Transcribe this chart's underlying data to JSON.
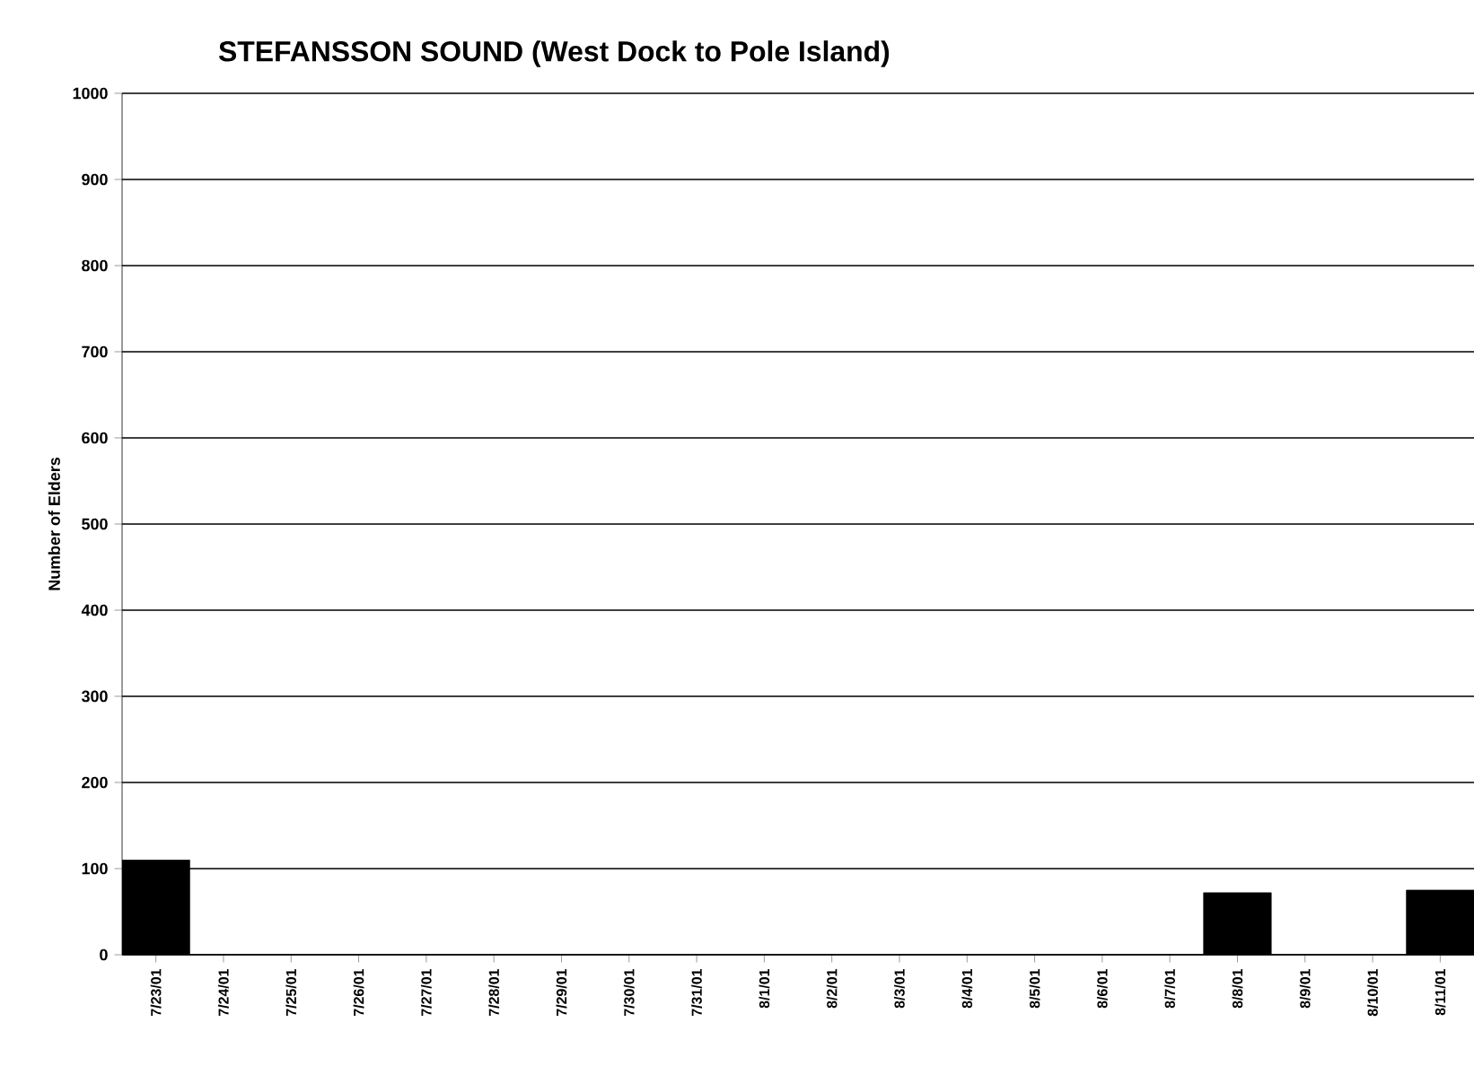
{
  "chart_data": {
    "type": "bar",
    "title": "STEFANSSON SOUND (West Dock to Pole Island)",
    "ylabel": "Number of Elders",
    "categories": [
      "7/23/01",
      "7/24/01",
      "7/25/01",
      "7/26/01",
      "7/27/01",
      "7/28/01",
      "7/29/01",
      "7/30/01",
      "7/31/01",
      "8/1/01",
      "8/2/01",
      "8/3/01",
      "8/4/01",
      "8/5/01",
      "8/6/01",
      "8/7/01",
      "8/8/01",
      "8/9/01",
      "8/10/01",
      "8/11/01"
    ],
    "values": [
      110,
      0,
      0,
      0,
      0,
      0,
      0,
      0,
      0,
      0,
      0,
      0,
      0,
      0,
      0,
      0,
      72,
      0,
      0,
      75
    ],
    "color": "#000000",
    "ylim": [
      0,
      1000
    ],
    "yticks": [
      0,
      100,
      200,
      300,
      400,
      500,
      600,
      700,
      800,
      900,
      1000
    ],
    "grid": "y"
  }
}
